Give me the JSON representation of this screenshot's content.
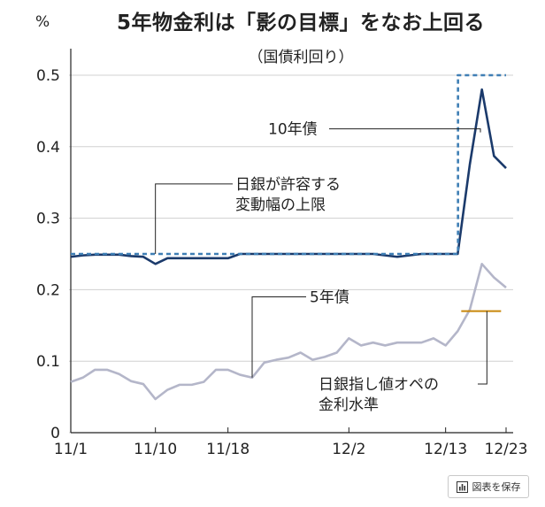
{
  "chart_data": {
    "type": "line",
    "title": "5年物金利は「影の目標」をなお上回る",
    "subtitle": "（国債利回り）",
    "unit_label": "%",
    "ylim": [
      0,
      0.5
    ],
    "y_ticks": [
      "0",
      "0.1",
      "0.2",
      "0.3",
      "0.4",
      "0.5"
    ],
    "x_ticks": [
      "11/1",
      "11/10",
      "11/18",
      "12/2",
      "12/13",
      "12/23"
    ],
    "grid": "horizontal",
    "series": [
      {
        "name": "10年債",
        "color": "#1b3a6b",
        "style": "solid",
        "values": [
          0.246,
          0.248,
          0.249,
          0.249,
          0.249,
          0.247,
          0.246,
          0.236,
          0.244,
          0.244,
          0.244,
          0.244,
          0.244,
          0.244,
          0.25,
          0.25,
          0.25,
          0.25,
          0.25,
          0.25,
          0.25,
          0.25,
          0.25,
          0.25,
          0.25,
          0.25,
          0.248,
          0.246,
          0.248,
          0.25,
          0.25,
          0.25,
          0.25,
          0.375,
          0.48,
          0.387,
          0.37
        ]
      },
      {
        "name": "日銀が許容する変動幅の上限",
        "color": "#3f7fb5",
        "style": "dashed",
        "values": [
          0.25,
          0.25,
          0.25,
          0.25,
          0.25,
          0.25,
          0.25,
          0.25,
          0.25,
          0.25,
          0.25,
          0.25,
          0.25,
          0.25,
          0.25,
          0.25,
          0.25,
          0.25,
          0.25,
          0.25,
          0.25,
          0.25,
          0.25,
          0.25,
          0.25,
          0.25,
          0.25,
          0.25,
          0.25,
          0.25,
          0.25,
          0.25,
          0.5,
          0.5,
          0.5,
          0.5,
          0.5
        ]
      },
      {
        "name": "5年債",
        "color": "#b4b6c9",
        "style": "solid",
        "values": [
          0.071,
          0.077,
          0.088,
          0.088,
          0.082,
          0.072,
          0.068,
          0.047,
          0.06,
          0.067,
          0.067,
          0.071,
          0.088,
          0.088,
          0.081,
          0.077,
          0.098,
          0.102,
          0.105,
          0.112,
          0.102,
          0.106,
          0.112,
          0.132,
          0.122,
          0.126,
          0.122,
          0.126,
          0.126,
          0.126,
          0.132,
          0.122,
          0.142,
          0.172,
          0.236,
          0.217,
          0.203
        ]
      },
      {
        "name": "日銀指し値オペの金利水準",
        "color": "#c8860a",
        "style": "solid",
        "values": [
          null,
          null,
          null,
          null,
          null,
          null,
          null,
          null,
          null,
          null,
          null,
          null,
          null,
          null,
          null,
          null,
          null,
          null,
          null,
          null,
          null,
          null,
          null,
          null,
          null,
          null,
          null,
          null,
          null,
          null,
          null,
          null,
          0.17,
          0.17,
          0.17,
          0.17,
          null
        ]
      }
    ],
    "annotations": [
      {
        "lines": [
          "10年債"
        ]
      },
      {
        "lines": [
          "日銀が許容する",
          "変動幅の上限"
        ]
      },
      {
        "lines": [
          "5年債"
        ]
      },
      {
        "lines": [
          "日銀指し値オペの",
          "金利水準"
        ]
      }
    ]
  },
  "footer": {
    "save_label": "図表を保存",
    "save_icon": "bar-chart-icon"
  }
}
